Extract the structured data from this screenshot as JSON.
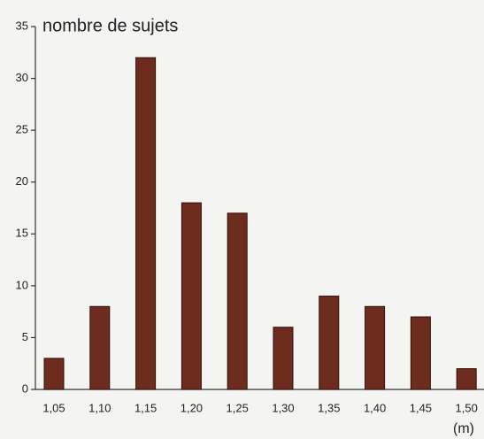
{
  "chart_data": {
    "type": "bar",
    "y_label": "nombre de sujets",
    "x_label": "(m)",
    "categories": [
      "1,05",
      "1,10",
      "1,15",
      "1,20",
      "1,25",
      "1,30",
      "1,35",
      "1,40",
      "1,45",
      "1,50"
    ],
    "values": [
      3,
      8,
      32,
      18,
      17,
      6,
      9,
      8,
      7,
      2
    ],
    "color": "#6e2c1f",
    "ylim": [
      0,
      35
    ],
    "yticks": [
      0,
      5,
      10,
      15,
      20,
      25,
      30,
      35
    ],
    "grid": false
  }
}
